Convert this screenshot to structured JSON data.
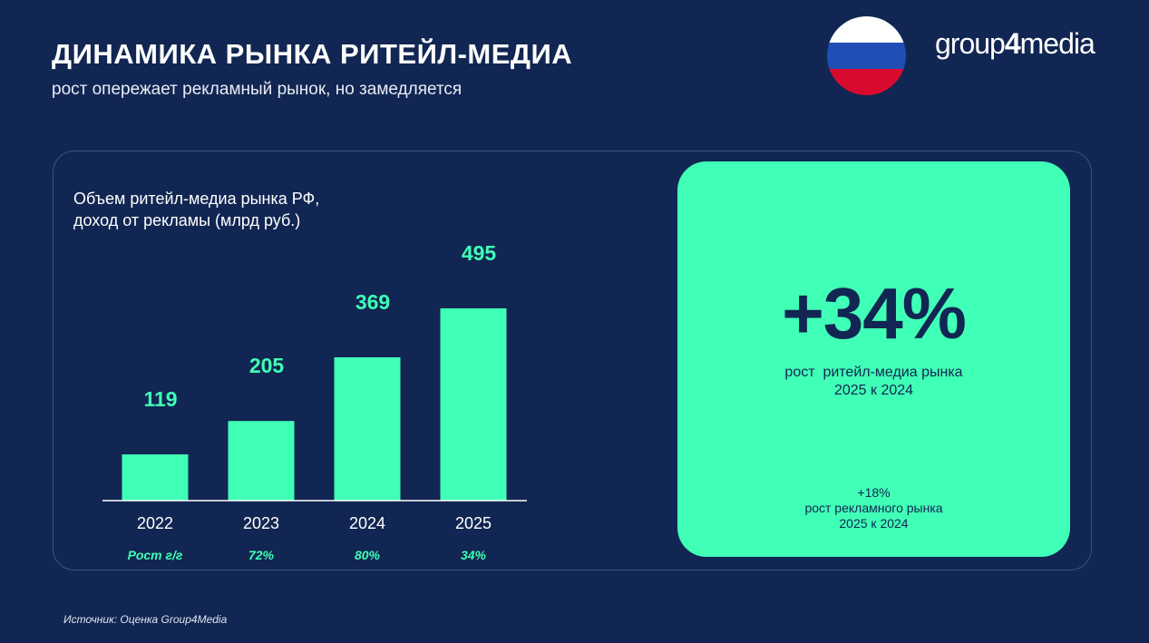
{
  "header": {
    "title": "ДИНАМИКА РЫНКА РИТЕЙЛ-МЕДИА",
    "subtitle": "рост опережает рекламный рынок, но замедляется",
    "logo_part1": "group",
    "logo_part2": "4",
    "logo_part3": "media"
  },
  "colors": {
    "background": "#112652",
    "accent": "#40ffb6",
    "flag_white": "#ffffff",
    "flag_blue": "#1f4fb4",
    "flag_red": "#d80b2e"
  },
  "chart_data": {
    "type": "bar",
    "title_line1": "Объем ритейл-медиа рынка РФ,",
    "title_line2": "доход от рекламы (млрд руб.)",
    "categories": [
      "2022",
      "2023",
      "2024",
      "2025"
    ],
    "values": [
      119,
      205,
      369,
      495
    ],
    "data_labels": [
      "119",
      "205",
      "369",
      "495"
    ],
    "growth_label": "Рост г/г",
    "growth": [
      "",
      "72%",
      "80%",
      "34%"
    ],
    "ylim": [
      0,
      495
    ],
    "grid": false,
    "legend": "none"
  },
  "highlight": {
    "value": "+34%",
    "caption_line1": "рост  ритейл-медиа рынка",
    "caption_line2": "2025 к 2024",
    "small_value": "+18%",
    "small_line1": "рост рекламного рынка",
    "small_line2": "2025 к 2024"
  },
  "footer": {
    "source": "Источник: Оценка Group4Media"
  }
}
